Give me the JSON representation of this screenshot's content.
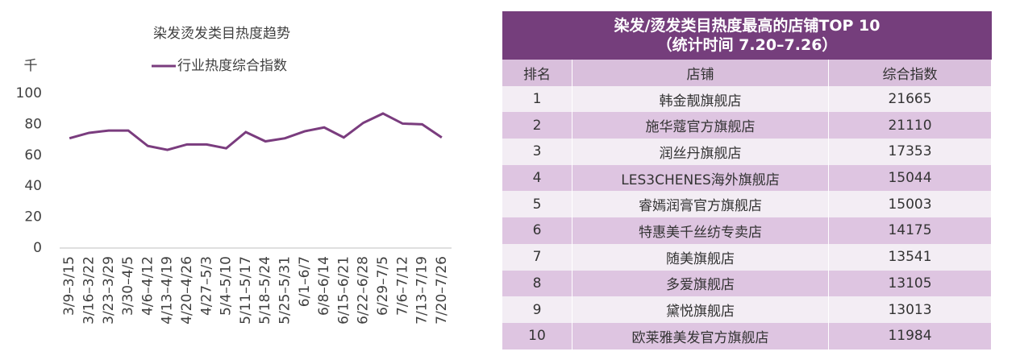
{
  "chart_data": {
    "type": "line",
    "title": "染发烫发类目热度趋势",
    "y_label": "千",
    "categories": [
      "3/9–3/15",
      "3/16–3/22",
      "3/23–3/29",
      "3/30–4/5",
      "4/6–4/12",
      "4/13–4/19",
      "4/20–4/26",
      "4/27–5/3",
      "5/4–5/10",
      "5/11–5/17",
      "5/18–5/24",
      "5/25–5/31",
      "6/1–6/7",
      "6/8–6/14",
      "6/15–6/21",
      "6/22–6/28",
      "6/29–7/5",
      "7/6–7/12",
      "7/13–7/19",
      "7/20–7/26"
    ],
    "series": [
      {
        "name": "行业热度综合指数",
        "color": "#7a3c7e",
        "values": [
          71,
          74.5,
          76,
          76,
          66,
          63.5,
          67,
          67,
          64.5,
          75,
          69,
          71,
          75.5,
          78,
          71.5,
          81,
          87,
          80.5,
          80,
          71.5
        ]
      }
    ],
    "ylim": [
      0,
      100
    ],
    "yticks": [
      0,
      20,
      40,
      60,
      80,
      100
    ],
    "grid": false
  },
  "table": {
    "title": [
      "染发/烫发类目热度最高的店铺TOP 10",
      "（统计时间 7.20–7.26）"
    ],
    "header": [
      "排名",
      "店铺",
      "综合指数"
    ],
    "rows": [
      [
        1,
        "韩金靓旗舰店",
        21665
      ],
      [
        2,
        "施华蔻官方旗舰店",
        21110
      ],
      [
        3,
        "润丝丹旗舰店",
        17353
      ],
      [
        4,
        "LES3CHENES海外旗舰店",
        15044
      ],
      [
        5,
        "睿嫣润膏官方旗舰店",
        15003
      ],
      [
        6,
        "特惠美千丝纺专卖店",
        14175
      ],
      [
        7,
        "随美旗舰店",
        13541
      ],
      [
        8,
        "多爱旗舰店",
        13105
      ],
      [
        9,
        "黛悦旗舰店",
        13013
      ],
      [
        10,
        "欧莱雅美发官方旗舰店",
        11984
      ]
    ]
  }
}
